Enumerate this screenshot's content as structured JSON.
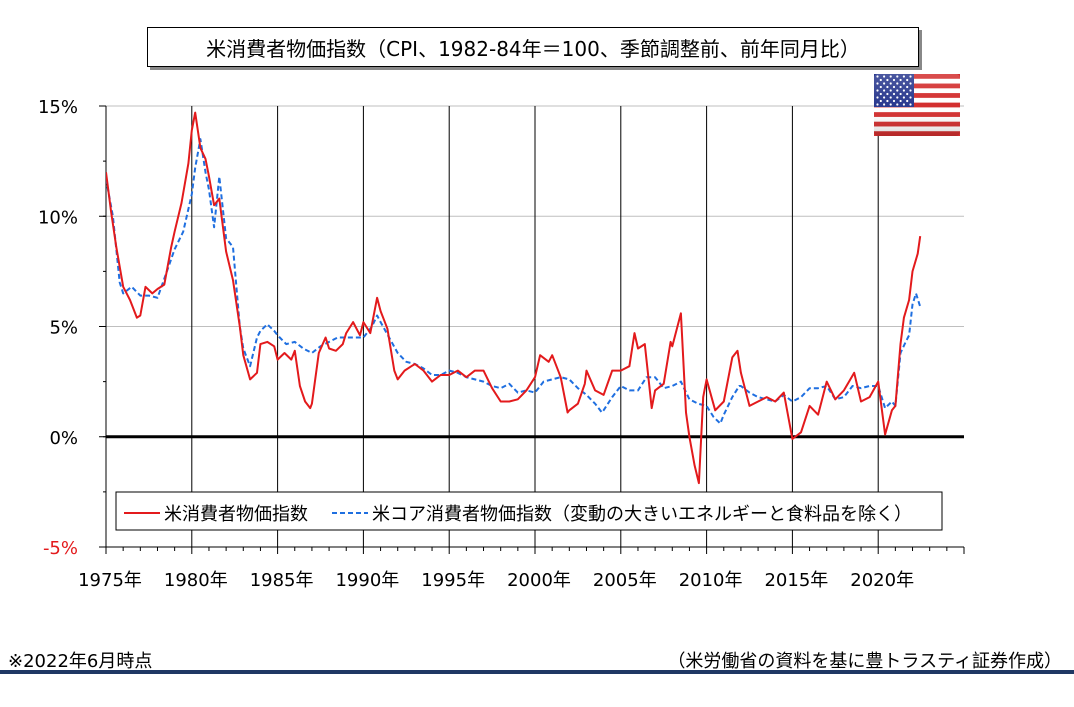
{
  "chart_data": {
    "type": "line",
    "title": "米消費者物価指数（CPI、1982-84年＝100、季節調整前、前年同月比）",
    "x_tick_labels": [
      "1975年",
      "1980年",
      "1985年",
      "1990年",
      "1995年",
      "2000年",
      "2005年",
      "2010年",
      "2015年",
      "2020年"
    ],
    "x_ticks": [
      1975,
      1980,
      1985,
      1990,
      1995,
      2000,
      2005,
      2010,
      2015,
      2020
    ],
    "xlim": [
      1975,
      2025
    ],
    "y_tick_labels": [
      "15%",
      "10%",
      "5%",
      "0%",
      "-5%"
    ],
    "y_ticks": [
      15,
      10,
      5,
      0,
      -5
    ],
    "ylim": [
      -5,
      15
    ],
    "grid": true,
    "legend_position": "bottom",
    "series": [
      {
        "name": "米消費者物価指数",
        "color": "#e31a1c",
        "style": "solid",
        "points": [
          [
            1975.0,
            12.0
          ],
          [
            1975.3,
            10.2
          ],
          [
            1975.6,
            8.6
          ],
          [
            1976.0,
            6.8
          ],
          [
            1976.4,
            6.2
          ],
          [
            1976.8,
            5.4
          ],
          [
            1977.0,
            5.5
          ],
          [
            1977.3,
            6.8
          ],
          [
            1977.7,
            6.5
          ],
          [
            1978.0,
            6.7
          ],
          [
            1978.4,
            6.9
          ],
          [
            1978.8,
            8.6
          ],
          [
            1979.0,
            9.3
          ],
          [
            1979.4,
            10.6
          ],
          [
            1979.8,
            12.4
          ],
          [
            1980.0,
            13.9
          ],
          [
            1980.2,
            14.7
          ],
          [
            1980.5,
            13.1
          ],
          [
            1980.8,
            12.6
          ],
          [
            1981.0,
            11.8
          ],
          [
            1981.3,
            10.5
          ],
          [
            1981.6,
            10.8
          ],
          [
            1982.0,
            8.4
          ],
          [
            1982.4,
            7.1
          ],
          [
            1982.8,
            5.0
          ],
          [
            1983.0,
            3.7
          ],
          [
            1983.4,
            2.6
          ],
          [
            1983.8,
            2.9
          ],
          [
            1984.0,
            4.2
          ],
          [
            1984.4,
            4.3
          ],
          [
            1984.8,
            4.1
          ],
          [
            1985.0,
            3.5
          ],
          [
            1985.4,
            3.8
          ],
          [
            1985.8,
            3.5
          ],
          [
            1986.0,
            3.9
          ],
          [
            1986.3,
            2.3
          ],
          [
            1986.6,
            1.6
          ],
          [
            1986.9,
            1.3
          ],
          [
            1987.0,
            1.5
          ],
          [
            1987.4,
            3.8
          ],
          [
            1987.8,
            4.5
          ],
          [
            1988.0,
            4.0
          ],
          [
            1988.4,
            3.9
          ],
          [
            1988.8,
            4.2
          ],
          [
            1989.0,
            4.7
          ],
          [
            1989.4,
            5.2
          ],
          [
            1989.8,
            4.6
          ],
          [
            1990.0,
            5.2
          ],
          [
            1990.4,
            4.7
          ],
          [
            1990.8,
            6.3
          ],
          [
            1991.0,
            5.7
          ],
          [
            1991.4,
            4.9
          ],
          [
            1991.8,
            3.0
          ],
          [
            1992.0,
            2.6
          ],
          [
            1992.4,
            3.0
          ],
          [
            1992.8,
            3.2
          ],
          [
            1993.0,
            3.3
          ],
          [
            1993.5,
            3.0
          ],
          [
            1994.0,
            2.5
          ],
          [
            1994.5,
            2.8
          ],
          [
            1995.0,
            2.8
          ],
          [
            1995.5,
            3.0
          ],
          [
            1996.0,
            2.7
          ],
          [
            1996.5,
            3.0
          ],
          [
            1997.0,
            3.0
          ],
          [
            1997.5,
            2.2
          ],
          [
            1998.0,
            1.6
          ],
          [
            1998.5,
            1.6
          ],
          [
            1999.0,
            1.7
          ],
          [
            1999.5,
            2.1
          ],
          [
            2000.0,
            2.7
          ],
          [
            2000.3,
            3.7
          ],
          [
            2000.8,
            3.4
          ],
          [
            2001.0,
            3.7
          ],
          [
            2001.5,
            2.7
          ],
          [
            2001.9,
            1.1
          ],
          [
            2002.0,
            1.2
          ],
          [
            2002.5,
            1.5
          ],
          [
            2002.9,
            2.4
          ],
          [
            2003.0,
            3.0
          ],
          [
            2003.5,
            2.1
          ],
          [
            2004.0,
            1.9
          ],
          [
            2004.5,
            3.0
          ],
          [
            2005.0,
            3.0
          ],
          [
            2005.5,
            3.2
          ],
          [
            2005.8,
            4.7
          ],
          [
            2006.0,
            4.0
          ],
          [
            2006.4,
            4.2
          ],
          [
            2006.8,
            1.3
          ],
          [
            2007.0,
            2.1
          ],
          [
            2007.5,
            2.4
          ],
          [
            2007.9,
            4.3
          ],
          [
            2008.0,
            4.1
          ],
          [
            2008.5,
            5.6
          ],
          [
            2008.8,
            1.1
          ],
          [
            2009.0,
            0.0
          ],
          [
            2009.3,
            -1.3
          ],
          [
            2009.55,
            -2.1
          ],
          [
            2009.8,
            1.8
          ],
          [
            2010.0,
            2.6
          ],
          [
            2010.5,
            1.2
          ],
          [
            2011.0,
            1.6
          ],
          [
            2011.5,
            3.6
          ],
          [
            2011.8,
            3.9
          ],
          [
            2012.0,
            2.9
          ],
          [
            2012.5,
            1.4
          ],
          [
            2013.0,
            1.6
          ],
          [
            2013.5,
            1.8
          ],
          [
            2014.0,
            1.6
          ],
          [
            2014.5,
            2.0
          ],
          [
            2015.0,
            -0.1
          ],
          [
            2015.5,
            0.2
          ],
          [
            2016.0,
            1.4
          ],
          [
            2016.5,
            1.0
          ],
          [
            2017.0,
            2.5
          ],
          [
            2017.5,
            1.7
          ],
          [
            2018.0,
            2.1
          ],
          [
            2018.6,
            2.9
          ],
          [
            2019.0,
            1.6
          ],
          [
            2019.5,
            1.8
          ],
          [
            2020.0,
            2.5
          ],
          [
            2020.4,
            0.1
          ],
          [
            2020.8,
            1.2
          ],
          [
            2021.0,
            1.4
          ],
          [
            2021.3,
            4.2
          ],
          [
            2021.5,
            5.4
          ],
          [
            2021.8,
            6.2
          ],
          [
            2022.0,
            7.5
          ],
          [
            2022.3,
            8.3
          ],
          [
            2022.45,
            9.1
          ]
        ]
      },
      {
        "name": "米コア消費者物価指数（変動の大きいエネルギーと食料品を除く）",
        "color": "#1f6fe0",
        "style": "dashed",
        "points": [
          [
            1975.0,
            11.7
          ],
          [
            1975.4,
            10.0
          ],
          [
            1975.8,
            7.0
          ],
          [
            1976.0,
            6.5
          ],
          [
            1976.5,
            6.8
          ],
          [
            1977.0,
            6.4
          ],
          [
            1977.5,
            6.4
          ],
          [
            1978.0,
            6.3
          ],
          [
            1978.5,
            7.4
          ],
          [
            1979.0,
            8.5
          ],
          [
            1979.5,
            9.3
          ],
          [
            1980.0,
            11.0
          ],
          [
            1980.2,
            12.2
          ],
          [
            1980.5,
            13.5
          ],
          [
            1980.8,
            12.0
          ],
          [
            1981.0,
            11.2
          ],
          [
            1981.3,
            9.5
          ],
          [
            1981.6,
            11.8
          ],
          [
            1982.0,
            9.0
          ],
          [
            1982.4,
            8.6
          ],
          [
            1982.8,
            5.0
          ],
          [
            1983.0,
            4.0
          ],
          [
            1983.4,
            3.2
          ],
          [
            1983.8,
            4.5
          ],
          [
            1984.0,
            4.8
          ],
          [
            1984.4,
            5.1
          ],
          [
            1984.8,
            4.8
          ],
          [
            1985.0,
            4.6
          ],
          [
            1985.5,
            4.2
          ],
          [
            1986.0,
            4.3
          ],
          [
            1986.5,
            4.0
          ],
          [
            1987.0,
            3.8
          ],
          [
            1987.5,
            4.1
          ],
          [
            1988.0,
            4.3
          ],
          [
            1988.5,
            4.5
          ],
          [
            1989.0,
            4.5
          ],
          [
            1989.5,
            4.5
          ],
          [
            1990.0,
            4.5
          ],
          [
            1990.5,
            5.0
          ],
          [
            1990.8,
            5.5
          ],
          [
            1991.0,
            5.2
          ],
          [
            1991.5,
            4.5
          ],
          [
            1992.0,
            3.8
          ],
          [
            1992.5,
            3.4
          ],
          [
            1993.0,
            3.3
          ],
          [
            1993.5,
            3.1
          ],
          [
            1994.0,
            2.8
          ],
          [
            1994.5,
            2.8
          ],
          [
            1995.0,
            3.0
          ],
          [
            1995.5,
            2.9
          ],
          [
            1996.0,
            2.7
          ],
          [
            1996.5,
            2.6
          ],
          [
            1997.0,
            2.5
          ],
          [
            1997.5,
            2.3
          ],
          [
            1998.0,
            2.2
          ],
          [
            1998.5,
            2.4
          ],
          [
            1999.0,
            2.0
          ],
          [
            1999.5,
            2.1
          ],
          [
            2000.0,
            2.0
          ],
          [
            2000.5,
            2.5
          ],
          [
            2001.0,
            2.6
          ],
          [
            2001.5,
            2.7
          ],
          [
            2002.0,
            2.6
          ],
          [
            2002.5,
            2.2
          ],
          [
            2003.0,
            1.9
          ],
          [
            2003.5,
            1.5
          ],
          [
            2003.9,
            1.1
          ],
          [
            2004.0,
            1.2
          ],
          [
            2004.5,
            1.8
          ],
          [
            2005.0,
            2.3
          ],
          [
            2005.5,
            2.1
          ],
          [
            2006.0,
            2.1
          ],
          [
            2006.5,
            2.7
          ],
          [
            2007.0,
            2.7
          ],
          [
            2007.5,
            2.2
          ],
          [
            2008.0,
            2.3
          ],
          [
            2008.5,
            2.5
          ],
          [
            2009.0,
            1.7
          ],
          [
            2009.5,
            1.5
          ],
          [
            2010.0,
            1.4
          ],
          [
            2010.4,
            0.9
          ],
          [
            2010.8,
            0.6
          ],
          [
            2011.0,
            1.0
          ],
          [
            2011.5,
            1.8
          ],
          [
            2011.9,
            2.3
          ],
          [
            2012.0,
            2.3
          ],
          [
            2012.5,
            2.0
          ],
          [
            2013.0,
            1.8
          ],
          [
            2013.5,
            1.7
          ],
          [
            2014.0,
            1.6
          ],
          [
            2014.5,
            1.9
          ],
          [
            2015.0,
            1.6
          ],
          [
            2015.5,
            1.8
          ],
          [
            2016.0,
            2.2
          ],
          [
            2016.5,
            2.2
          ],
          [
            2017.0,
            2.3
          ],
          [
            2017.5,
            1.7
          ],
          [
            2018.0,
            1.8
          ],
          [
            2018.5,
            2.3
          ],
          [
            2019.0,
            2.2
          ],
          [
            2019.5,
            2.3
          ],
          [
            2020.0,
            2.3
          ],
          [
            2020.4,
            1.3
          ],
          [
            2020.8,
            1.6
          ],
          [
            2021.0,
            1.4
          ],
          [
            2021.3,
            3.8
          ],
          [
            2021.6,
            4.3
          ],
          [
            2021.8,
            4.6
          ],
          [
            2022.0,
            6.0
          ],
          [
            2022.2,
            6.5
          ],
          [
            2022.45,
            5.9
          ]
        ]
      }
    ]
  },
  "footnote": "※2022年6月時点",
  "source": "（米労働省の資料を基に豊トラスティ証券作成）",
  "flag_icon": "us-flag-icon"
}
